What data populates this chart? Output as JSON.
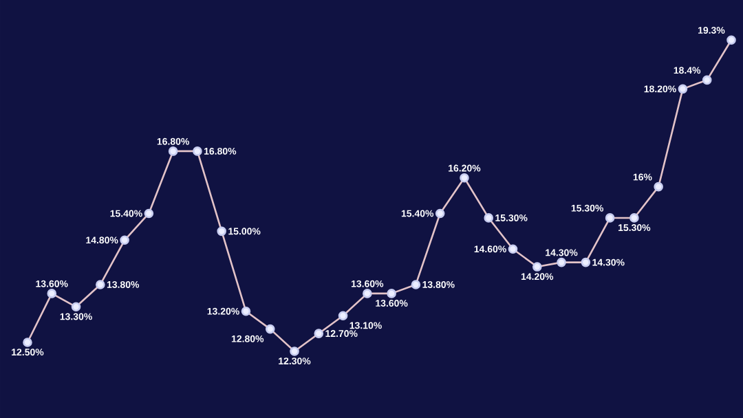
{
  "chart_data": {
    "type": "line",
    "categories": [
      null,
      null,
      null,
      null,
      null,
      null,
      null,
      null,
      null,
      null,
      null,
      null,
      null,
      null,
      null,
      null,
      null,
      null,
      null,
      null,
      null,
      null,
      null,
      null,
      null,
      null,
      null,
      null,
      null,
      null
    ],
    "ylim": [
      10.8,
      20.2
    ],
    "marker": "circle",
    "series": [
      {
        "color": "#e3c3c8",
        "values": [
          12.5,
          13.6,
          13.3,
          13.8,
          14.8,
          15.4,
          16.8,
          16.8,
          15.0,
          13.2,
          12.8,
          12.3,
          12.7,
          13.1,
          13.6,
          13.6,
          13.8,
          15.4,
          16.2,
          15.3,
          14.6,
          14.2,
          14.3,
          14.3,
          15.3,
          15.3,
          16,
          18.2,
          18.4,
          19.3
        ],
        "value_labels": [
          "12.50%",
          "13.60%",
          "13.30%",
          "13.80%",
          "14.80%",
          "15.40%",
          "16.80%",
          "16.80%",
          "15.00%",
          "13.20%",
          "12.80%",
          "12.30%",
          "12.70%",
          "13.10%",
          "13.60%",
          "13.60%",
          "13.80%",
          "15.40%",
          "16.20%",
          "15.30%",
          "14.60%",
          "14.20%",
          "14.30%",
          "14.30%",
          "15.30%",
          "15.30%",
          "16%",
          "18.20%",
          "18.4%",
          "19.3%"
        ]
      }
    ]
  }
}
